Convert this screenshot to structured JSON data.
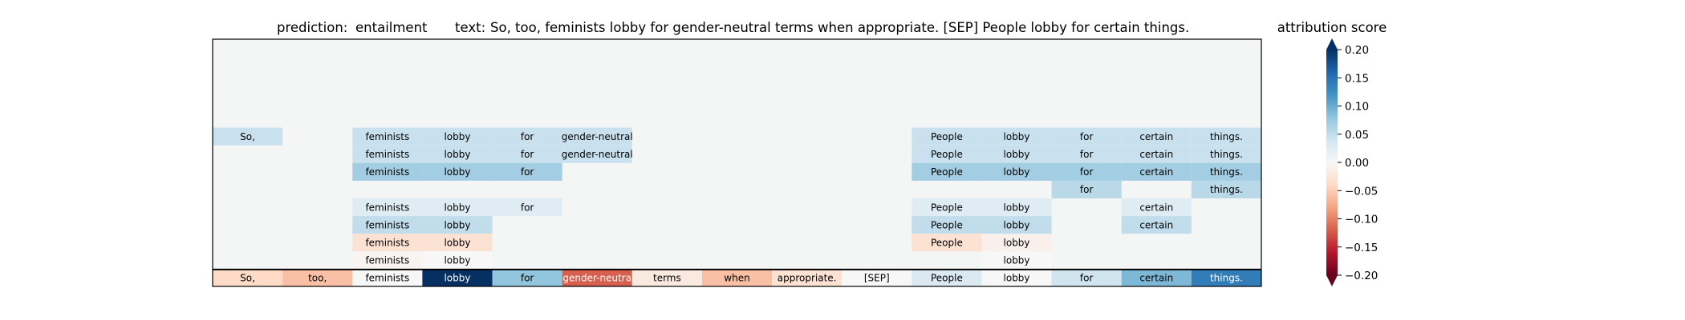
{
  "header": {
    "prediction_label": "prediction:",
    "prediction_value": "entailment",
    "text_label": "text:",
    "text_value": "So, too, feminists lobby for gender-neutral terms when appropriate. [SEP] People lobby for certain things."
  },
  "colorbar": {
    "title": "attribution score",
    "ticks": [
      "0.20",
      "0.15",
      "0.10",
      "0.05",
      "0.00",
      "−0.05",
      "−0.10",
      "−0.15",
      "−0.20"
    ],
    "tick_values": [
      0.2,
      0.15,
      0.1,
      0.05,
      0.0,
      -0.05,
      -0.1,
      -0.15,
      -0.2
    ],
    "range": [
      -0.2,
      0.2
    ],
    "extend": "both"
  },
  "chart_data": {
    "type": "heatmap",
    "title": "prediction: entailment text: So, too, feminists lobby for gender-neutral terms when appropriate. [SEP] People lobby for certain things.",
    "columns": 15,
    "rows_total": 14,
    "colormap": "RdBu",
    "vmin": -0.2,
    "vmax": 0.2,
    "background_color": "#f4f6f5",
    "tokens": [
      "So,",
      "too,",
      "feminists",
      "lobby",
      "for",
      "gender-neutral",
      "terms",
      "when",
      "appropriate.",
      "[SEP]",
      "People",
      "lobby",
      "for",
      "certain",
      "things."
    ],
    "bottom_row": {
      "labels": [
        "So,",
        "too,",
        "feminists",
        "lobby",
        "for",
        "gender-neutral",
        "terms",
        "when",
        "appropriate.",
        "[SEP]",
        "People",
        "lobby",
        "for",
        "certain",
        "things."
      ],
      "display": [
        "So,",
        "too,",
        "feminists",
        "lobby",
        "for",
        "gender-neutra",
        "terms",
        "when",
        "appropriate.",
        "[SEP]",
        "People",
        "lobby",
        "for",
        "certain",
        "things."
      ],
      "values": [
        -0.04,
        -0.06,
        0.0,
        0.2,
        0.08,
        -0.12,
        -0.02,
        -0.06,
        -0.03,
        0.0,
        0.03,
        0.0,
        0.04,
        0.09,
        0.14
      ]
    },
    "rows": [
      {
        "row": 5,
        "cells": [
          {
            "col": 0,
            "label": "So,",
            "value": 0.045
          },
          {
            "col": 2,
            "label": "feminists",
            "value": 0.045
          },
          {
            "col": 3,
            "label": "lobby",
            "value": 0.045
          },
          {
            "col": 4,
            "label": "for",
            "value": 0.045
          },
          {
            "col": 5,
            "label": "gender-neutral",
            "value": 0.045
          },
          {
            "col": 10,
            "label": "People",
            "value": 0.045
          },
          {
            "col": 11,
            "label": "lobby",
            "value": 0.045
          },
          {
            "col": 12,
            "label": "for",
            "value": 0.045
          },
          {
            "col": 13,
            "label": "certain",
            "value": 0.045
          },
          {
            "col": 14,
            "label": "things.",
            "value": 0.045
          }
        ]
      },
      {
        "row": 6,
        "cells": [
          {
            "col": 2,
            "label": "feminists",
            "value": 0.045
          },
          {
            "col": 3,
            "label": "lobby",
            "value": 0.045
          },
          {
            "col": 4,
            "label": "for",
            "value": 0.045
          },
          {
            "col": 5,
            "label": "gender-neutral",
            "value": 0.045
          },
          {
            "col": 10,
            "label": "People",
            "value": 0.045
          },
          {
            "col": 11,
            "label": "lobby",
            "value": 0.045
          },
          {
            "col": 12,
            "label": "for",
            "value": 0.045
          },
          {
            "col": 13,
            "label": "certain",
            "value": 0.045
          },
          {
            "col": 14,
            "label": "things.",
            "value": 0.045
          }
        ]
      },
      {
        "row": 7,
        "cells": [
          {
            "col": 2,
            "label": "feminists",
            "value": 0.07
          },
          {
            "col": 3,
            "label": "lobby",
            "value": 0.07
          },
          {
            "col": 4,
            "label": "for",
            "value": 0.07
          },
          {
            "col": 10,
            "label": "People",
            "value": 0.07
          },
          {
            "col": 11,
            "label": "lobby",
            "value": 0.07
          },
          {
            "col": 12,
            "label": "for",
            "value": 0.07
          },
          {
            "col": 13,
            "label": "certain",
            "value": 0.07
          },
          {
            "col": 14,
            "label": "things.",
            "value": 0.07
          }
        ]
      },
      {
        "row": 8,
        "cells": [
          {
            "col": 12,
            "label": "for",
            "value": 0.055
          },
          {
            "col": 14,
            "label": "things.",
            "value": 0.055
          }
        ]
      },
      {
        "row": 9,
        "cells": [
          {
            "col": 2,
            "label": "feminists",
            "value": 0.025
          },
          {
            "col": 3,
            "label": "lobby",
            "value": 0.025
          },
          {
            "col": 4,
            "label": "for",
            "value": 0.025
          },
          {
            "col": 10,
            "label": "People",
            "value": 0.025
          },
          {
            "col": 11,
            "label": "lobby",
            "value": 0.025
          },
          {
            "col": 13,
            "label": "certain",
            "value": 0.025
          }
        ]
      },
      {
        "row": 10,
        "cells": [
          {
            "col": 2,
            "label": "feminists",
            "value": 0.05
          },
          {
            "col": 3,
            "label": "lobby",
            "value": 0.05
          },
          {
            "col": 10,
            "label": "People",
            "value": 0.05
          },
          {
            "col": 11,
            "label": "lobby",
            "value": 0.05
          },
          {
            "col": 13,
            "label": "certain",
            "value": 0.05
          }
        ]
      },
      {
        "row": 11,
        "cells": [
          {
            "col": 2,
            "label": "feminists",
            "value": -0.03
          },
          {
            "col": 3,
            "label": "lobby",
            "value": -0.03
          },
          {
            "col": 10,
            "label": "People",
            "value": -0.03
          },
          {
            "col": 11,
            "label": "lobby",
            "value": -0.01
          }
        ]
      },
      {
        "row": 12,
        "cells": [
          {
            "col": 2,
            "label": "feminists",
            "value": -0.005
          },
          {
            "col": 3,
            "label": "lobby",
            "value": 0.0
          },
          {
            "col": 11,
            "label": "lobby",
            "value": 0.0
          }
        ]
      },
      {
        "row": 13,
        "cells": [
          {
            "col": 3,
            "label": "lobby",
            "value": 0.12
          },
          {
            "col": 11,
            "label": "lobby",
            "value": 0.12
          }
        ]
      }
    ]
  }
}
